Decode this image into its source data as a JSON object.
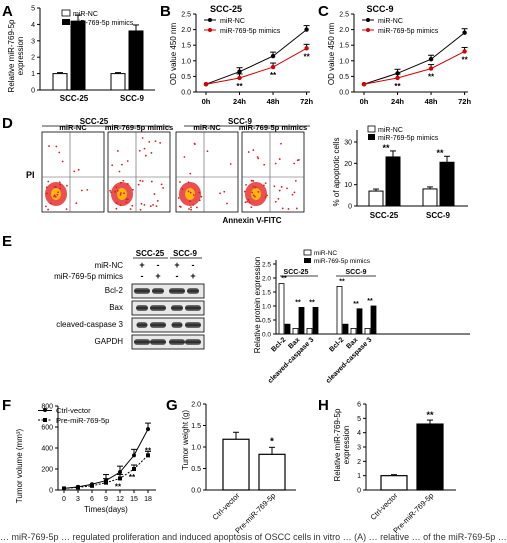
{
  "panels": {
    "A": "A",
    "B": "B",
    "C": "C",
    "D": "D",
    "E": "E",
    "F": "F",
    "G": "G",
    "H": "H"
  },
  "colors": {
    "nc": "#ffffff",
    "mimic": "#d40000",
    "black": "#000000",
    "grey_line": "#444444"
  },
  "panelA": {
    "ylabel_1": "Relative miR-769-5p",
    "ylabel_2": "expression",
    "legend": [
      "miR-NC",
      "miR-769-5p mimics"
    ],
    "sig": [
      "**",
      "**"
    ],
    "groups": [
      "SCC-25",
      "SCC-9"
    ],
    "ticks": [
      "0",
      "1",
      "2",
      "3",
      "4",
      "5"
    ]
  },
  "panelB": {
    "title": "SCC-25",
    "ylabel": "OD value 450 nm",
    "legend": [
      "miR-NC",
      "miR-769-5p mimics"
    ],
    "xticks": [
      "0h",
      "24h",
      "48h",
      "72h"
    ],
    "yticks": [
      "0.0",
      "0.5",
      "1.0",
      "1.5",
      "2.0",
      "2.5"
    ],
    "sig": [
      "**",
      "**",
      "**"
    ]
  },
  "panelC": {
    "title": "SCC-9",
    "ylabel": "OD value 450 nm",
    "legend": [
      "miR-NC",
      "miR-769-5p mimics"
    ],
    "xticks": [
      "0h",
      "24h",
      "48h",
      "72h"
    ],
    "yticks": [
      "0.0",
      "0.5",
      "1.0",
      "1.5",
      "2.0",
      "2.5"
    ],
    "sig": [
      "**",
      "**",
      "**"
    ]
  },
  "panelD": {
    "groups": [
      "SCC-25",
      "SCC-9"
    ],
    "flow_labels": [
      "miR-NC",
      "miR-769-5p mimics",
      "miR-NC",
      "miR-769-5p mimics"
    ],
    "y_axis": "PI",
    "x_axis": "Annexin V-FITC",
    "bar_ylabel": "% of apoptotic cells",
    "legend": [
      "miR-NC",
      "miR-769-5p mimics"
    ],
    "sig": [
      "**",
      "**"
    ],
    "ticks": [
      "0",
      "10",
      "20",
      "30"
    ]
  },
  "panelE": {
    "headers": [
      "SCC-25",
      "SCC-9"
    ],
    "rows": [
      "miR-NC",
      "miR-769-5p mimics"
    ],
    "signs_nc": [
      "+",
      "-",
      "+",
      "-"
    ],
    "signs_mimic": [
      "-",
      "+",
      "-",
      "+"
    ],
    "bands": [
      "Bcl-2",
      "Bax",
      "cleaved-caspase 3",
      "GAPDH"
    ],
    "legend": [
      "miR-NC",
      "miR-769-5p mimics"
    ],
    "ylabel": "Relative protein expression",
    "ticks": [
      "0.0",
      "0.5",
      "1.0",
      "1.5",
      "2.0",
      "2.5"
    ],
    "groups": [
      "SCC-25",
      "SCC-9"
    ],
    "xcats": [
      "Bcl-2",
      "Bax",
      "cleaved-caspase 3",
      "Bcl-2",
      "Bax",
      "cleaved-caspase 3"
    ],
    "sig": "**"
  },
  "panelF": {
    "legend": [
      "Ctrl-vector",
      "Pre-miR-769-5p"
    ],
    "ylabel": "Tumor volume (mm³)",
    "xlabel": "Times(days)",
    "xticks": [
      "0",
      "3",
      "6",
      "9",
      "12",
      "15",
      "18"
    ],
    "yticks": [
      "0",
      "200",
      "400",
      "600",
      "800"
    ],
    "sig": [
      "**",
      "**",
      "**"
    ]
  },
  "panelG": {
    "ylabel": "Tumor weight (g)",
    "ticks": [
      "0.0",
      "0.5",
      "1.0",
      "1.5",
      "2.0"
    ],
    "cats": [
      "Ctrl-vector",
      "Pre-miR-769-5p"
    ],
    "sig": "*"
  },
  "panelH": {
    "ylabel_1": "Relative miR-769-5p",
    "ylabel_2": "expression",
    "ticks": [
      "0",
      "1",
      "2",
      "3",
      "4",
      "5",
      "6"
    ],
    "cats": [
      "Ctrl-vector",
      "Pre-miR-769-5p"
    ],
    "sig": "**"
  },
  "caption": "… miR-769-5p … regulated proliferation and induced apoptosis of OSCC cells in vitro … (A) … relative … of the miR-769-5p …",
  "chart_data": [
    {
      "type": "bar",
      "categories": [
        "SCC-25",
        "SCC-9"
      ],
      "series": [
        {
          "name": "miR-NC",
          "values": [
            1.0,
            1.0
          ]
        },
        {
          "name": "miR-769-5p mimics",
          "values": [
            4.2,
            3.6
          ]
        }
      ],
      "ylabel": "Relative miR-769-5p expression",
      "ylim": [
        0,
        5
      ]
    },
    {
      "type": "line",
      "title": "SCC-25",
      "categories": [
        "0h",
        "24h",
        "48h",
        "72h"
      ],
      "series": [
        {
          "name": "miR-NC",
          "values": [
            0.25,
            0.65,
            1.15,
            2.0
          ]
        },
        {
          "name": "miR-769-5p mimics",
          "values": [
            0.25,
            0.45,
            0.8,
            1.4
          ]
        }
      ],
      "ylabel": "OD value 450 nm",
      "ylim": [
        0,
        2.5
      ]
    },
    {
      "type": "line",
      "title": "SCC-9",
      "categories": [
        "0h",
        "24h",
        "48h",
        "72h"
      ],
      "series": [
        {
          "name": "miR-NC",
          "values": [
            0.25,
            0.6,
            1.05,
            1.9
          ]
        },
        {
          "name": "miR-769-5p mimics",
          "values": [
            0.25,
            0.45,
            0.75,
            1.3
          ]
        }
      ],
      "ylabel": "OD value 450 nm",
      "ylim": [
        0,
        2.5
      ]
    },
    {
      "type": "bar",
      "categories": [
        "SCC-25",
        "SCC-9"
      ],
      "series": [
        {
          "name": "miR-NC",
          "values": [
            7,
            8
          ]
        },
        {
          "name": "miR-769-5p mimics",
          "values": [
            23,
            20.5
          ]
        }
      ],
      "ylabel": "% of apoptotic cells",
      "ylim": [
        0,
        30
      ]
    },
    {
      "type": "bar",
      "categories": [
        "Bcl-2",
        "Bax",
        "cleaved-caspase 3",
        "Bcl-2",
        "Bax",
        "cleaved-caspase 3"
      ],
      "series": [
        {
          "name": "miR-NC",
          "values": [
            1.8,
            0.2,
            0.2,
            1.7,
            0.2,
            0.2
          ]
        },
        {
          "name": "miR-769-5p mimics",
          "values": [
            0.35,
            0.95,
            0.95,
            0.35,
            0.9,
            1.0
          ]
        }
      ],
      "ylabel": "Relative protein expression",
      "ylim": [
        0,
        2.5
      ]
    },
    {
      "type": "line",
      "categories": [
        "0",
        "3",
        "6",
        "9",
        "12",
        "15",
        "18"
      ],
      "series": [
        {
          "name": "Ctrl-vector",
          "values": [
            15,
            30,
            55,
            90,
            170,
            330,
            580
          ]
        },
        {
          "name": "Pre-miR-769-5p",
          "values": [
            15,
            25,
            40,
            70,
            110,
            200,
            330
          ]
        }
      ],
      "xlabel": "Times(days)",
      "ylabel": "Tumor volume (mm³)",
      "ylim": [
        0,
        800
      ]
    },
    {
      "type": "bar",
      "categories": [
        "Ctrl-vector",
        "Pre-miR-769-5p"
      ],
      "values": [
        1.18,
        0.83
      ],
      "ylabel": "Tumor weight (g)",
      "ylim": [
        0,
        2.0
      ]
    },
    {
      "type": "bar",
      "categories": [
        "Ctrl-vector",
        "Pre-miR-769-5p"
      ],
      "values": [
        1.0,
        4.6
      ],
      "ylabel": "Relative miR-769-5p expression",
      "ylim": [
        0,
        6
      ]
    }
  ]
}
